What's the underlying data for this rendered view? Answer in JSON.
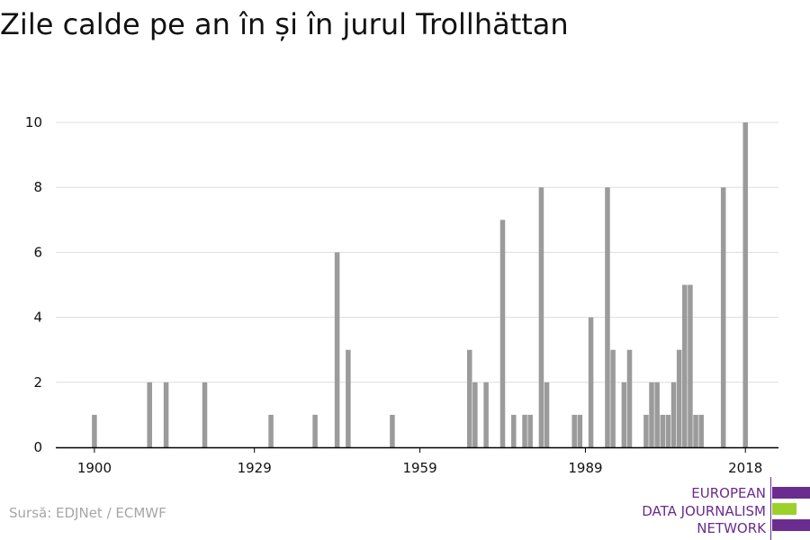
{
  "title": "Zile calde pe an în și în jurul Trollhättan",
  "source": "Sursă: EDJNet / ECMWF",
  "logo": {
    "lines": [
      "EUROPEAN",
      "DATA JOURNALISM",
      "NETWORK"
    ],
    "colors": {
      "purple": "#6a2c8e",
      "green": "#9bd12a"
    }
  },
  "colors": {
    "bar": "#9b9b9b",
    "grid": "#dddddd",
    "axis": "#000000",
    "text": "#111111"
  },
  "chart_data": {
    "type": "bar",
    "title": "Zile calde pe an în și în jurul Trollhättan",
    "xlabel": "",
    "ylabel": "",
    "ylim": [
      0,
      10
    ],
    "xlim": [
      1893,
      2024
    ],
    "yticks": [
      0,
      2,
      4,
      6,
      8,
      10
    ],
    "xticks": [
      "1900",
      "1929",
      "1959",
      "1989",
      "2018"
    ],
    "grid": true,
    "x": [
      1900,
      1910,
      1913,
      1920,
      1932,
      1940,
      1944,
      1946,
      1954,
      1968,
      1969,
      1971,
      1974,
      1976,
      1978,
      1979,
      1981,
      1982,
      1987,
      1988,
      1990,
      1993,
      1994,
      1996,
      1997,
      2000,
      2001,
      2002,
      2003,
      2004,
      2005,
      2006,
      2007,
      2008,
      2009,
      2010,
      2014,
      2018
    ],
    "values": [
      1,
      2,
      2,
      2,
      1,
      1,
      6,
      3,
      1,
      3,
      2,
      2,
      7,
      1,
      1,
      1,
      8,
      2,
      1,
      1,
      4,
      8,
      3,
      2,
      3,
      1,
      2,
      2,
      1,
      1,
      2,
      3,
      5,
      5,
      1,
      1,
      8,
      10
    ]
  }
}
